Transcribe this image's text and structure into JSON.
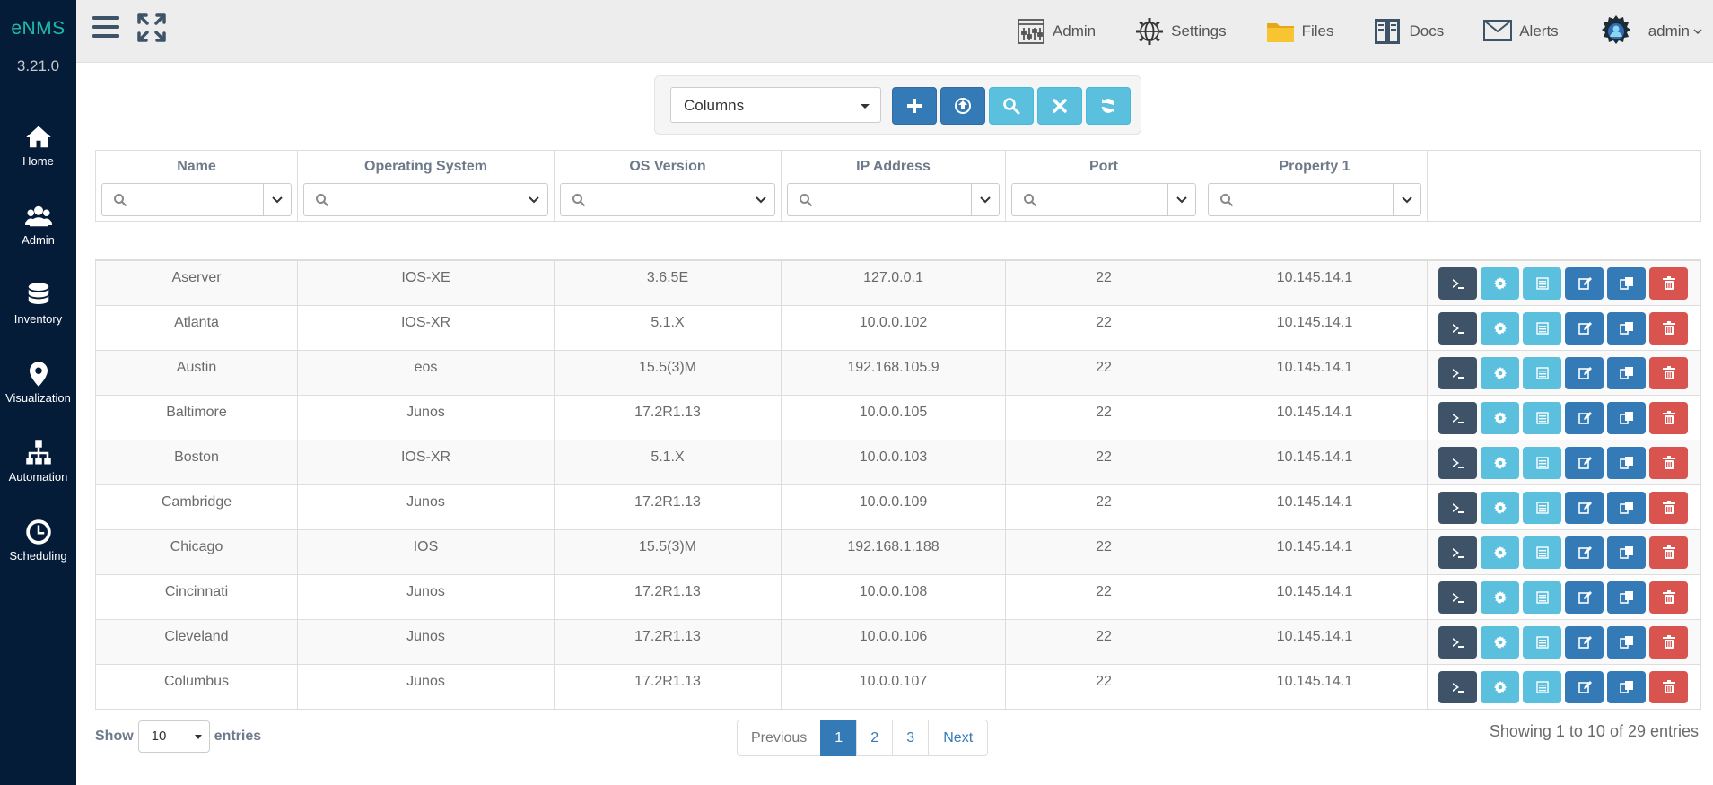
{
  "sidebar": {
    "brand": "eNMS",
    "version": "3.21.0",
    "items": [
      {
        "label": "Home",
        "icon": "home-icon"
      },
      {
        "label": "Admin",
        "icon": "users-icon"
      },
      {
        "label": "Inventory",
        "icon": "database-icon"
      },
      {
        "label": "Visualization",
        "icon": "map-marker-icon"
      },
      {
        "label": "Automation",
        "icon": "sitemap-icon"
      },
      {
        "label": "Scheduling",
        "icon": "clock-icon"
      }
    ]
  },
  "topbar": {
    "admin": "Admin",
    "settings": "Settings",
    "files": "Files",
    "docs": "Docs",
    "alerts": "Alerts",
    "user": "admin"
  },
  "toolbar": {
    "columns_label": "Columns"
  },
  "table": {
    "columns": [
      "Name",
      "Operating System",
      "OS Version",
      "IP Address",
      "Port",
      "Property 1"
    ],
    "rows": [
      [
        "Aserver",
        "IOS-XE",
        "3.6.5E",
        "127.0.0.1",
        "22",
        "10.145.14.1"
      ],
      [
        "Atlanta",
        "IOS-XR",
        "5.1.X",
        "10.0.0.102",
        "22",
        "10.145.14.1"
      ],
      [
        "Austin",
        "eos",
        "15.5(3)M",
        "192.168.105.9",
        "22",
        "10.145.14.1"
      ],
      [
        "Baltimore",
        "Junos",
        "17.2R1.13",
        "10.0.0.105",
        "22",
        "10.145.14.1"
      ],
      [
        "Boston",
        "IOS-XR",
        "5.1.X",
        "10.0.0.103",
        "22",
        "10.145.14.1"
      ],
      [
        "Cambridge",
        "Junos",
        "17.2R1.13",
        "10.0.0.109",
        "22",
        "10.145.14.1"
      ],
      [
        "Chicago",
        "IOS",
        "15.5(3)M",
        "192.168.1.188",
        "22",
        "10.145.14.1"
      ],
      [
        "Cincinnati",
        "Junos",
        "17.2R1.13",
        "10.0.0.108",
        "22",
        "10.145.14.1"
      ],
      [
        "Cleveland",
        "Junos",
        "17.2R1.13",
        "10.0.0.106",
        "22",
        "10.145.14.1"
      ],
      [
        "Columbus",
        "Junos",
        "17.2R1.13",
        "10.0.0.107",
        "22",
        "10.145.14.1"
      ]
    ]
  },
  "footer": {
    "show_label": "Show",
    "entries_label": "entries",
    "page_length": "10",
    "previous": "Previous",
    "next": "Next",
    "pages": [
      "1",
      "2",
      "3"
    ],
    "info": "Showing 1 to 10 of 29 entries"
  }
}
